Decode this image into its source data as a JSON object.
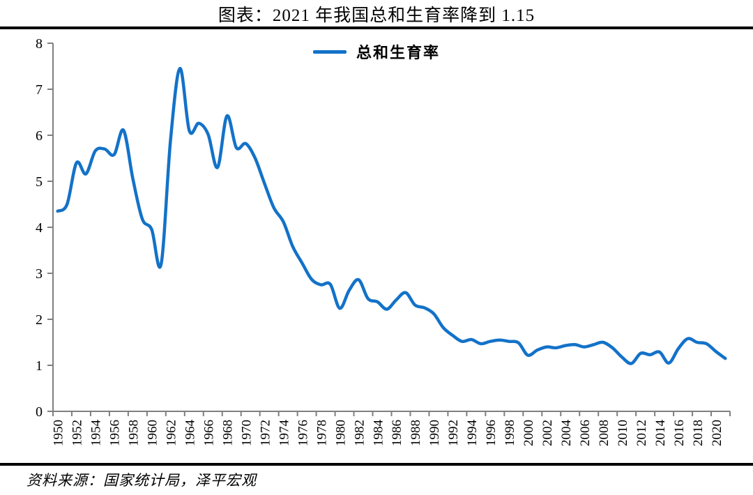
{
  "title": "图表：2021 年我国总和生育率降到 1.15",
  "legend": {
    "label": "总和生育率"
  },
  "source_note": "资料来源：国家统计局，泽平宏观",
  "colors": {
    "line": "#1372c8",
    "axis": "#7f7f7f",
    "text": "#000000",
    "divider": "#000000",
    "background": "#ffffff"
  },
  "chart_data": {
    "type": "line",
    "title": "图表：2021 年我国总和生育率降到 1.15",
    "series_name": "总和生育率",
    "x": [
      1950,
      1951,
      1952,
      1953,
      1954,
      1955,
      1956,
      1957,
      1958,
      1959,
      1960,
      1961,
      1962,
      1963,
      1964,
      1965,
      1966,
      1967,
      1968,
      1969,
      1970,
      1971,
      1972,
      1973,
      1974,
      1975,
      1976,
      1977,
      1978,
      1979,
      1980,
      1981,
      1982,
      1983,
      1984,
      1985,
      1986,
      1987,
      1988,
      1989,
      1990,
      1991,
      1992,
      1993,
      1994,
      1995,
      1996,
      1997,
      1998,
      1999,
      2000,
      2001,
      2002,
      2003,
      2004,
      2005,
      2006,
      2007,
      2008,
      2009,
      2010,
      2011,
      2012,
      2013,
      2014,
      2015,
      2016,
      2017,
      2018,
      2019,
      2020,
      2021
    ],
    "values": [
      4.35,
      4.5,
      5.4,
      5.16,
      5.66,
      5.7,
      5.58,
      6.11,
      5.05,
      4.18,
      3.95,
      3.2,
      5.9,
      7.45,
      6.1,
      6.26,
      6.02,
      5.3,
      6.42,
      5.73,
      5.82,
      5.5,
      4.95,
      4.42,
      4.12,
      3.58,
      3.22,
      2.87,
      2.75,
      2.76,
      2.24,
      2.63,
      2.86,
      2.45,
      2.38,
      2.22,
      2.42,
      2.58,
      2.31,
      2.25,
      2.12,
      1.82,
      1.65,
      1.52,
      1.56,
      1.47,
      1.52,
      1.55,
      1.52,
      1.49,
      1.22,
      1.33,
      1.4,
      1.38,
      1.43,
      1.45,
      1.4,
      1.45,
      1.5,
      1.38,
      1.18,
      1.04,
      1.26,
      1.23,
      1.29,
      1.05,
      1.36,
      1.58,
      1.5,
      1.47,
      1.3,
      1.15
    ],
    "ylim": [
      0,
      8
    ],
    "yticks": [
      0,
      1,
      2,
      3,
      4,
      5,
      6,
      7,
      8
    ],
    "xtick_labels": [
      "1950",
      "1952",
      "1954",
      "1956",
      "1958",
      "1960",
      "1962",
      "1964",
      "1966",
      "1968",
      "1970",
      "1972",
      "1974",
      "1976",
      "1978",
      "1980",
      "1982",
      "1984",
      "1986",
      "1988",
      "1990",
      "1992",
      "1994",
      "1996",
      "1998",
      "2000",
      "2002",
      "2004",
      "2006",
      "2008",
      "2010",
      "2012",
      "2014",
      "2016",
      "2018",
      "2020"
    ],
    "grid": false,
    "legend_position": "top-center"
  }
}
